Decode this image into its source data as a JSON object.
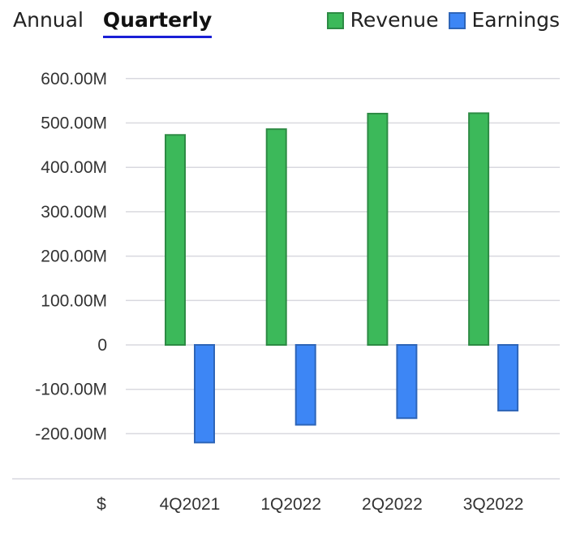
{
  "tabs": [
    {
      "label": "Annual",
      "active": false
    },
    {
      "label": "Quarterly",
      "active": true
    }
  ],
  "accent_color": "#1a1fd6",
  "chart_data": {
    "type": "bar",
    "categories": [
      "4Q2021",
      "1Q2022",
      "2Q2022",
      "3Q2022"
    ],
    "series": [
      {
        "name": "Revenue",
        "color": "#3cb95a",
        "values": [
          473000000,
          486000000,
          521000000,
          522000000
        ]
      },
      {
        "name": "Earnings",
        "color": "#3d86f5",
        "values": [
          -220000000,
          -180000000,
          -165000000,
          -148000000
        ]
      }
    ],
    "ylim": [
      -300000000,
      600000000
    ],
    "yticks": [
      {
        "value": 600000000,
        "label": "600.00M"
      },
      {
        "value": 500000000,
        "label": "500.00M"
      },
      {
        "value": 400000000,
        "label": "400.00M"
      },
      {
        "value": 300000000,
        "label": "300.00M"
      },
      {
        "value": 200000000,
        "label": "200.00M"
      },
      {
        "value": 100000000,
        "label": "100.00M"
      },
      {
        "value": 0,
        "label": "0"
      },
      {
        "value": -100000000,
        "label": "-100.00M"
      },
      {
        "value": -200000000,
        "label": "-200.00M"
      }
    ],
    "currency_label": "$",
    "grid": true,
    "legend_position": "top-right"
  }
}
